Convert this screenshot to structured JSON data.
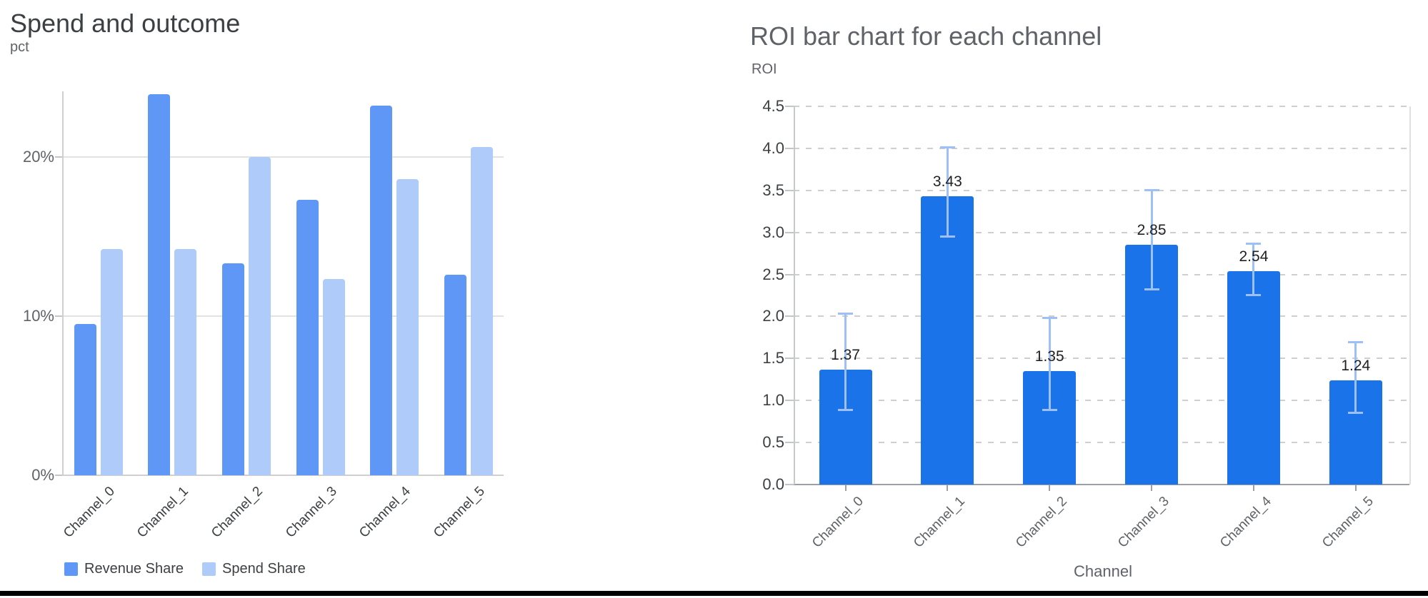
{
  "window": {
    "background": "#ffffff",
    "bottom_bar_color": "#000000"
  },
  "chart_data": [
    {
      "type": "bar",
      "title": "Spend and outcome",
      "ylabel": "pct",
      "xlabel": "",
      "categories": [
        "Channel_0",
        "Channel_1",
        "Channel_2",
        "Channel_3",
        "Channel_4",
        "Channel_5"
      ],
      "series": [
        {
          "name": "Revenue Share",
          "color": "#5e97f6",
          "values": [
            9.5,
            23.9,
            13.3,
            17.3,
            23.2,
            12.6
          ]
        },
        {
          "name": "Spend Share",
          "color": "#aecbfa",
          "values": [
            14.2,
            14.2,
            20.0,
            12.3,
            18.6,
            20.6
          ]
        }
      ],
      "y_ticks": [
        {
          "value": 0,
          "label": "0%"
        },
        {
          "value": 10,
          "label": "10%"
        },
        {
          "value": 20,
          "label": "20%"
        }
      ],
      "ylim": [
        0,
        24.1
      ],
      "grid": "solid",
      "legend_position": "bottom"
    },
    {
      "type": "bar",
      "title": "ROI bar chart for each channel",
      "ylabel": "ROI",
      "xlabel": "Channel",
      "categories": [
        "Channel_0",
        "Channel_1",
        "Channel_2",
        "Channel_3",
        "Channel_4",
        "Channel_5"
      ],
      "series": [
        {
          "name": "ROI",
          "color": "#1a73e8",
          "values": [
            1.37,
            3.43,
            1.35,
            2.85,
            2.54,
            1.24
          ]
        }
      ],
      "bar_labels": [
        "1.37",
        "3.43",
        "1.35",
        "2.85",
        "2.54",
        "1.24"
      ],
      "error_bars": [
        {
          "low": 0.88,
          "high": 2.04
        },
        {
          "low": 2.95,
          "high": 4.02
        },
        {
          "low": 0.88,
          "high": 1.99
        },
        {
          "low": 2.32,
          "high": 3.51
        },
        {
          "low": 2.25,
          "high": 2.87
        },
        {
          "low": 0.85,
          "high": 1.7
        }
      ],
      "error_bar_color": "#9dc0f9",
      "y_ticks": [
        {
          "value": 0,
          "label": "0.0"
        },
        {
          "value": 0.5,
          "label": "0.5"
        },
        {
          "value": 1,
          "label": "1.0"
        },
        {
          "value": 1.5,
          "label": "1.5"
        },
        {
          "value": 2,
          "label": "2.0"
        },
        {
          "value": 2.5,
          "label": "2.5"
        },
        {
          "value": 3,
          "label": "3.0"
        },
        {
          "value": 3.5,
          "label": "3.5"
        },
        {
          "value": 4,
          "label": "4.0"
        },
        {
          "value": 4.5,
          "label": "4.5"
        }
      ],
      "ylim": [
        0,
        4.5
      ],
      "grid": "dashed",
      "legend_position": "none"
    }
  ]
}
